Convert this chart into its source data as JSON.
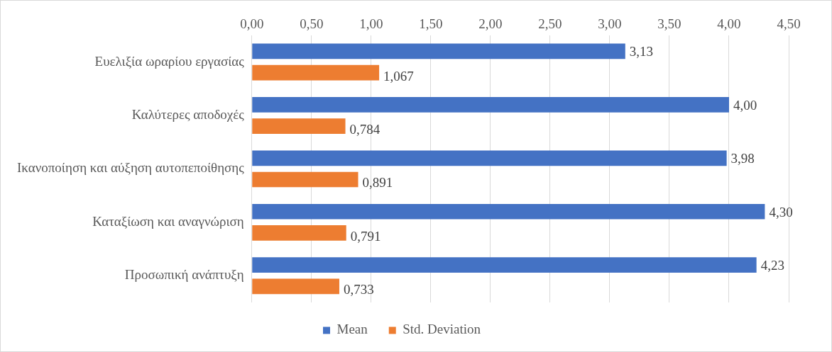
{
  "chart_data": {
    "type": "bar",
    "orientation": "horizontal",
    "categories": [
      "Ευελιξία ωραρίου εργασίας",
      "Καλύτερες αποδοχές",
      "Ικανοποίηση και αύξηση αυτοπεποίθησης",
      "Καταξίωση και αναγνώριση",
      "Προσωπική ανάπτυξη"
    ],
    "series": [
      {
        "name": "Mean",
        "color": "#4472c4",
        "values": [
          3.13,
          4.0,
          3.98,
          4.3,
          4.23
        ],
        "value_labels": [
          "3,13",
          "4,00",
          "3,98",
          "4,30",
          "4,23"
        ]
      },
      {
        "name": "Std. Deviation",
        "color": "#ed7d31",
        "values": [
          1.067,
          0.784,
          0.891,
          0.791,
          0.733
        ],
        "value_labels": [
          "1,067",
          "0,784",
          "0,891",
          "0,791",
          "0,733"
        ]
      }
    ],
    "xlim": [
      0,
      4.5
    ],
    "xticks": [
      {
        "value": 0,
        "label": "0,00"
      },
      {
        "value": 0.5,
        "label": "0,50"
      },
      {
        "value": 1,
        "label": "1,00"
      },
      {
        "value": 1.5,
        "label": "1,50"
      },
      {
        "value": 2,
        "label": "2,00"
      },
      {
        "value": 2.5,
        "label": "2,50"
      },
      {
        "value": 3,
        "label": "3,00"
      },
      {
        "value": 3.5,
        "label": "3,50"
      },
      {
        "value": 4,
        "label": "4,00"
      },
      {
        "value": 4.5,
        "label": "4,50"
      }
    ],
    "grid": "x",
    "legend": "bottom"
  }
}
